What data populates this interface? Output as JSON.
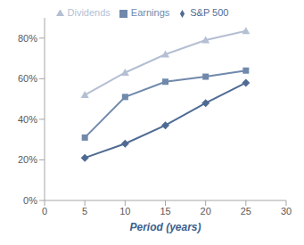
{
  "chart_data": {
    "type": "line",
    "x_label": "Period (years)",
    "x": [
      5,
      10,
      15,
      20,
      25
    ],
    "series": [
      {
        "name": "Dividends",
        "color": "#b4bfd3",
        "marker": "triangle",
        "values": [
          52,
          63,
          72,
          79,
          83.5
        ]
      },
      {
        "name": "Earnings",
        "color": "#7089ab",
        "marker": "square",
        "values": [
          31,
          51,
          58.5,
          61,
          64
        ]
      },
      {
        "name": "S&P 500",
        "color": "#4f6b93",
        "marker": "diamond",
        "values": [
          21,
          28,
          37,
          48,
          58
        ]
      }
    ],
    "xlim": [
      0,
      30
    ],
    "xticks": [
      0,
      5,
      10,
      15,
      20,
      25,
      30
    ],
    "ylim": [
      0,
      90
    ],
    "yticks": [
      {
        "value": 0,
        "label": "0%"
      },
      {
        "value": 20,
        "label": "20%"
      },
      {
        "value": 40,
        "label": "40%"
      },
      {
        "value": 60,
        "label": "60%"
      },
      {
        "value": 80,
        "label": "80%"
      }
    ],
    "grid": false,
    "legend": "top"
  }
}
